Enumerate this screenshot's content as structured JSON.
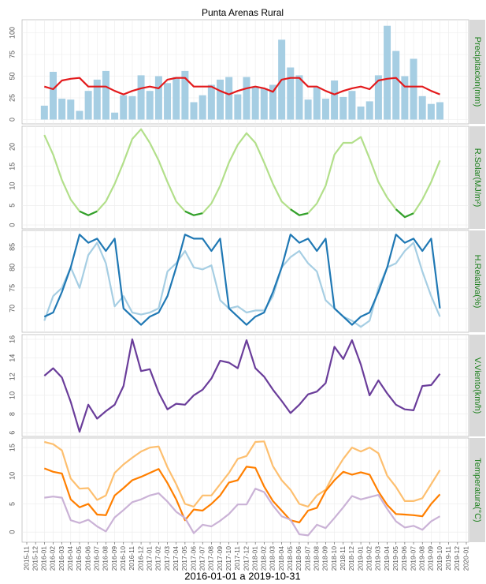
{
  "title": "Punta Arenas Rural",
  "xlabel": "2016-01-01 a 2019-10-31",
  "xlim": [
    "2015-11",
    "2020-01"
  ],
  "xticks": [
    "2015-11",
    "2015-12",
    "2016-01",
    "2016-02",
    "2016-03",
    "2016-04",
    "2016-05",
    "2016-06",
    "2016-07",
    "2016-08",
    "2016-09",
    "2016-10",
    "2016-11",
    "2016-12",
    "2017-01",
    "2017-02",
    "2017-03",
    "2017-04",
    "2017-05",
    "2017-06",
    "2017-07",
    "2017-08",
    "2017-09",
    "2017-10",
    "2017-11",
    "2017-12",
    "2018-01",
    "2018-02",
    "2018-03",
    "2018-04",
    "2018-05",
    "2018-06",
    "2018-07",
    "2018-08",
    "2018-09",
    "2018-10",
    "2018-11",
    "2018-12",
    "2019-01",
    "2019-02",
    "2019-03",
    "2019-04",
    "2019-05",
    "2019-06",
    "2019-07",
    "2019-08",
    "2019-09",
    "2019-10",
    "2019-11",
    "2019-12",
    "2020-01"
  ],
  "x": [
    "2016-01",
    "2016-02",
    "2016-03",
    "2016-04",
    "2016-05",
    "2016-06",
    "2016-07",
    "2016-08",
    "2016-09",
    "2016-10",
    "2016-11",
    "2016-12",
    "2017-01",
    "2017-02",
    "2017-03",
    "2017-04",
    "2017-05",
    "2017-06",
    "2017-07",
    "2017-08",
    "2017-09",
    "2017-10",
    "2017-11",
    "2017-12",
    "2018-01",
    "2018-02",
    "2018-03",
    "2018-04",
    "2018-05",
    "2018-06",
    "2018-07",
    "2018-08",
    "2018-09",
    "2018-10",
    "2018-11",
    "2018-12",
    "2019-01",
    "2019-02",
    "2019-03",
    "2019-04",
    "2019-05",
    "2019-06",
    "2019-07",
    "2019-08",
    "2019-09",
    "2019-10"
  ],
  "chart_data": [
    {
      "type": "bar",
      "strip": "Precipitacion(mm)",
      "ylim": [
        -5,
        115
      ],
      "yticks": [
        0,
        25,
        50,
        75,
        100
      ],
      "grid": true,
      "series": [
        {
          "type": "bar",
          "color": "#a6cee3",
          "values": [
            16,
            55,
            24,
            23,
            10,
            33,
            46,
            56,
            8,
            28,
            27,
            51,
            33,
            50,
            42,
            49,
            56,
            20,
            28,
            40,
            46,
            49,
            29,
            49,
            38,
            36,
            40,
            92,
            60,
            51,
            23,
            37,
            24,
            45,
            26,
            33,
            15,
            21,
            51,
            108,
            79,
            50,
            70,
            27,
            18,
            20
          ]
        },
        {
          "type": "line",
          "color": "#e31a1c",
          "values": [
            38,
            35,
            45,
            47,
            48,
            38,
            38,
            38,
            33,
            29,
            33,
            36,
            38,
            36,
            46,
            48,
            48,
            38,
            38,
            38,
            33,
            29,
            33,
            36,
            38,
            36,
            32,
            46,
            48,
            48,
            38,
            38,
            33,
            29,
            33,
            36,
            38,
            35,
            45,
            47,
            48,
            38,
            38,
            38,
            33,
            29
          ]
        }
      ]
    },
    {
      "type": "line",
      "strip": "R.Solar(MJ/m²)",
      "ylim": [
        -1,
        25.25
      ],
      "yticks": [
        0,
        5,
        10,
        15,
        20
      ],
      "grid": true,
      "series": [
        {
          "color": "#b2df8a",
          "values": [
            23,
            18,
            11.5,
            6.5,
            3.5,
            2.5,
            3.5,
            6,
            10.5,
            16,
            22,
            24.5,
            21,
            16.5,
            11,
            6,
            3.5,
            2.5,
            3,
            5.5,
            10,
            16,
            20.5,
            23.5,
            21,
            16,
            10.5,
            6,
            4,
            2.5,
            3,
            5.5,
            10,
            18,
            21,
            21,
            22.5,
            17,
            11,
            7,
            4,
            2,
            3,
            6.5,
            11,
            16.5
          ]
        },
        {
          "color": "#33a02c",
          "values": [
            null,
            null,
            null,
            null,
            3.5,
            2.5,
            3.5,
            null,
            null,
            null,
            null,
            null,
            null,
            null,
            null,
            null,
            3.5,
            2.5,
            3,
            null,
            null,
            null,
            null,
            null,
            null,
            null,
            null,
            null,
            4,
            2.5,
            3,
            null,
            null,
            null,
            null,
            null,
            null,
            null,
            null,
            null,
            4,
            2,
            3,
            null,
            null,
            null
          ]
        }
      ]
    },
    {
      "type": "line",
      "strip": "H.Relativa(%)",
      "ylim": [
        64.2,
        89
      ],
      "yticks": [
        70,
        75,
        80,
        85
      ],
      "grid": true,
      "series": [
        {
          "color": "#a6cee3",
          "values": [
            67,
            73,
            75,
            80,
            75,
            83,
            86,
            81,
            70.5,
            73,
            69,
            68.5,
            69,
            70,
            79,
            81,
            84,
            80,
            79.5,
            80.5,
            72,
            70,
            70.5,
            69,
            69.5,
            69.5,
            73,
            80,
            82.5,
            84,
            81,
            79,
            72,
            70,
            68,
            67,
            65.5,
            67,
            75,
            80,
            81,
            84,
            86,
            79,
            73,
            68
          ]
        },
        {
          "color": "#1f78b4",
          "values": [
            68,
            69,
            74,
            80,
            88,
            86,
            87,
            84,
            87,
            70,
            68,
            66,
            68,
            69,
            73,
            80,
            88,
            87,
            87,
            84,
            87,
            70,
            68,
            66,
            68,
            69,
            74,
            80,
            88,
            86,
            87,
            84,
            87,
            70,
            68,
            66,
            68,
            69,
            74,
            80,
            88,
            86,
            87,
            84,
            87,
            70
          ]
        }
      ]
    },
    {
      "type": "line",
      "strip": "V.Viento(km/h)",
      "ylim": [
        5.6,
        16.5
      ],
      "yticks": [
        6,
        8,
        10,
        12,
        14,
        16
      ],
      "grid": true,
      "series": [
        {
          "color": "#6a3d9a",
          "values": [
            12.1,
            12.9,
            11.9,
            9.3,
            6.1,
            9.0,
            7.5,
            8.3,
            9.0,
            11.0,
            16.0,
            12.6,
            12.8,
            10.3,
            8.5,
            9.1,
            9.0,
            10.0,
            10.6,
            11.8,
            13.7,
            13.5,
            12.9,
            15.9,
            12.9,
            12.0,
            10.6,
            9.4,
            8.1,
            9.0,
            10.1,
            10.4,
            11.3,
            15.2,
            13.9,
            15.9,
            13.3,
            10.0,
            11.6,
            10.2,
            9.0,
            8.5,
            8.4,
            11.0,
            11.1,
            12.3
          ]
        }
      ]
    },
    {
      "type": "line",
      "strip": "Temperatura(°C)",
      "ylim": [
        -1.8,
        16.7
      ],
      "yticks": [
        0,
        5,
        10,
        15
      ],
      "grid": true,
      "series": [
        {
          "color": "#fdbf6f",
          "values": [
            16,
            15.6,
            14.5,
            9.5,
            7.7,
            7.8,
            5.7,
            6.5,
            10.5,
            12,
            13.2,
            14.3,
            15,
            15.2,
            11.5,
            8.5,
            5,
            4.5,
            6.5,
            6.5,
            8.5,
            10.5,
            13,
            13.5,
            16,
            16.1,
            11.7,
            9.2,
            7.5,
            5,
            4.5,
            6.5,
            7.5,
            10.5,
            13,
            15,
            14.3,
            15,
            14,
            10,
            8,
            5.5,
            5.5,
            6,
            8.5,
            11
          ]
        },
        {
          "color": "#ff7f00",
          "values": [
            11.3,
            10.7,
            10.4,
            5.8,
            4.4,
            5,
            3.1,
            3,
            6.5,
            7.8,
            9.2,
            9.8,
            10.5,
            11.2,
            8.7,
            5.8,
            2.1,
            4,
            3.8,
            5,
            6.5,
            8.8,
            9.2,
            11.6,
            11.4,
            8.1,
            5.5,
            3.8,
            2.1,
            1.7,
            3.8,
            4.3,
            7.3,
            9.2,
            10.7,
            10.2,
            10.6,
            10.2,
            7.2,
            4.8,
            3.2,
            3.1,
            3.0,
            2.8,
            5,
            6.7
          ]
        },
        {
          "color": "#cab2d6",
          "values": [
            6.1,
            6.3,
            6.1,
            2.1,
            1.6,
            2.2,
            1,
            0.1,
            2.6,
            3.9,
            5.3,
            5.8,
            6.5,
            6.9,
            5.4,
            3.6,
            2.5,
            -0.2,
            1.3,
            1,
            2,
            3.2,
            4.9,
            4.9,
            7.7,
            7.1,
            4.7,
            2.8,
            2.2,
            -0.4,
            -0.6,
            1.3,
            0.7,
            2.5,
            4.4,
            6.4,
            5.8,
            6.2,
            6.6,
            4.1,
            1.9,
            0.8,
            1.1,
            0.4,
            1.9,
            2.8
          ]
        }
      ]
    }
  ]
}
